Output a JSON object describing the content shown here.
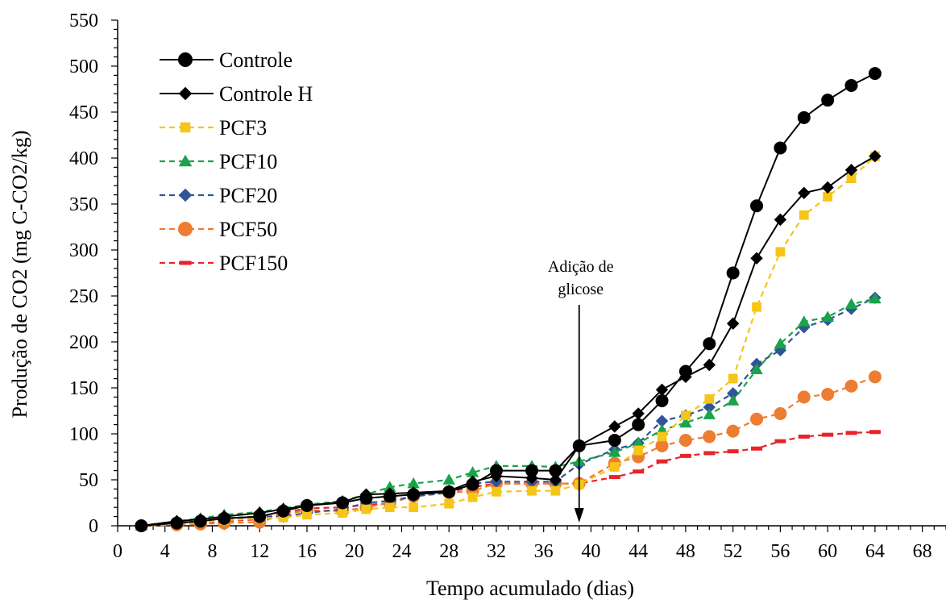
{
  "chart_data": {
    "type": "line",
    "title": "",
    "xlabel": "Tempo acumulado (dias)",
    "ylabel": "Produção de CO2 (mg C-CO2/kg)",
    "xlim": [
      0,
      70
    ],
    "ylim": [
      0,
      550
    ],
    "xticks": [
      "0",
      "4",
      "8",
      "12",
      "16",
      "20",
      "24",
      "28",
      "32",
      "36",
      "40",
      "44",
      "48",
      "52",
      "56",
      "60",
      "64",
      "68"
    ],
    "yticks": [
      "0",
      "50",
      "100",
      "150",
      "200",
      "250",
      "300",
      "350",
      "400",
      "450",
      "500",
      "550"
    ],
    "legend_position": "top-left",
    "annotation": {
      "lines": [
        "Adição de",
        "glicose"
      ],
      "x": 39,
      "y_from": 110,
      "y_to": 0
    },
    "series": [
      {
        "name": "Controle",
        "color": "#000000",
        "dash": false,
        "marker": "circle",
        "x": [
          2,
          5,
          7,
          9,
          12,
          14,
          16,
          19,
          21,
          23,
          25,
          28,
          30,
          32,
          35,
          37,
          39,
          42,
          44,
          46,
          48,
          50,
          52,
          54,
          56,
          58,
          60,
          62,
          64
        ],
        "y": [
          0,
          3,
          5,
          8,
          10,
          16,
          22,
          25,
          30,
          32,
          34,
          37,
          45,
          60,
          60,
          60,
          87,
          93,
          110,
          136,
          168,
          198,
          275,
          348,
          411,
          444,
          463,
          479,
          492
        ]
      },
      {
        "name": "Controle H",
        "color": "#000000",
        "dash": false,
        "marker": "diamond",
        "x": [
          2,
          5,
          7,
          9,
          12,
          14,
          16,
          19,
          21,
          23,
          25,
          28,
          30,
          32,
          35,
          37,
          39,
          42,
          44,
          46,
          48,
          50,
          52,
          54,
          56,
          58,
          60,
          62,
          64
        ],
        "y": [
          0,
          5,
          7,
          10,
          14,
          18,
          22,
          26,
          34,
          35,
          36,
          38,
          48,
          54,
          52,
          50,
          87,
          108,
          122,
          148,
          162,
          175,
          220,
          291,
          333,
          362,
          368,
          387,
          402
        ]
      },
      {
        "name": "PCF3",
        "color": "#F5C518",
        "dash": true,
        "marker": "square",
        "x": [
          2,
          5,
          7,
          9,
          12,
          14,
          16,
          19,
          21,
          23,
          25,
          28,
          30,
          32,
          35,
          37,
          39,
          42,
          44,
          46,
          48,
          50,
          52,
          54,
          56,
          58,
          60,
          62,
          64
        ],
        "y": [
          0,
          2,
          4,
          6,
          8,
          9,
          12,
          14,
          18,
          20,
          20,
          24,
          31,
          37,
          38,
          38,
          45,
          64,
          82,
          97,
          120,
          138,
          160,
          238,
          298,
          338,
          358,
          378,
          402
        ]
      },
      {
        "name": "PCF10",
        "color": "#1AA34A",
        "dash": true,
        "marker": "triangle",
        "x": [
          2,
          5,
          7,
          9,
          12,
          14,
          16,
          19,
          21,
          23,
          25,
          28,
          30,
          32,
          35,
          37,
          39,
          42,
          44,
          46,
          48,
          50,
          52,
          54,
          56,
          58,
          60,
          62,
          64
        ],
        "y": [
          0,
          5,
          8,
          12,
          15,
          19,
          23,
          27,
          34,
          42,
          46,
          50,
          58,
          65,
          65,
          64,
          70,
          80,
          90,
          104,
          112,
          121,
          136,
          170,
          198,
          222,
          227,
          241,
          247
        ]
      },
      {
        "name": "PCF20",
        "color": "#2F5597",
        "dash": true,
        "marker": "diamond",
        "x": [
          2,
          5,
          7,
          9,
          12,
          14,
          16,
          19,
          21,
          23,
          25,
          28,
          30,
          32,
          35,
          37,
          39,
          42,
          44,
          46,
          48,
          50,
          52,
          54,
          56,
          58,
          60,
          62,
          64
        ],
        "y": [
          0,
          3,
          5,
          8,
          10,
          10,
          14,
          18,
          25,
          27,
          32,
          36,
          46,
          48,
          48,
          48,
          67,
          83,
          90,
          114,
          120,
          129,
          144,
          176,
          191,
          216,
          224,
          236,
          248
        ]
      },
      {
        "name": "PCF50",
        "color": "#ED7D31",
        "dash": true,
        "marker": "circle",
        "x": [
          2,
          5,
          7,
          9,
          12,
          14,
          16,
          19,
          21,
          23,
          25,
          28,
          30,
          32,
          35,
          37,
          39,
          42,
          44,
          46,
          48,
          50,
          52,
          54,
          56,
          58,
          60,
          62,
          64
        ],
        "y": [
          0,
          1,
          2,
          3,
          4,
          12,
          17,
          16,
          20,
          25,
          32,
          36,
          38,
          46,
          46,
          46,
          46,
          68,
          75,
          87,
          93,
          97,
          103,
          116,
          122,
          140,
          143,
          152,
          162
        ]
      },
      {
        "name": "PCF150",
        "color": "#E8242A",
        "dash": true,
        "marker": "dash",
        "x": [
          2,
          5,
          7,
          9,
          12,
          14,
          16,
          19,
          21,
          23,
          25,
          28,
          30,
          32,
          35,
          37,
          39,
          42,
          44,
          46,
          48,
          50,
          52,
          54,
          56,
          58,
          60,
          62,
          64
        ],
        "y": [
          0,
          2,
          3,
          5,
          7,
          14,
          19,
          20,
          23,
          24,
          33,
          37,
          42,
          46,
          46,
          46,
          46,
          53,
          59,
          70,
          76,
          79,
          81,
          84,
          92,
          97,
          99,
          101,
          102
        ]
      }
    ]
  }
}
